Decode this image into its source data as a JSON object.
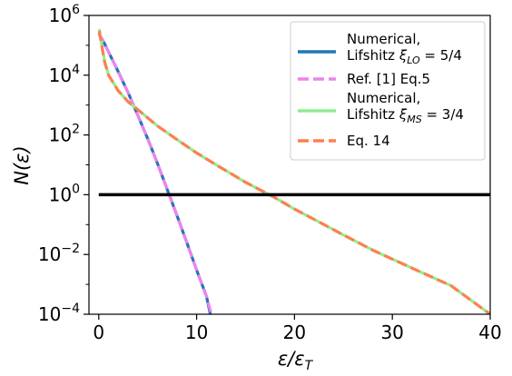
{
  "chart_data": {
    "type": "line",
    "title": "",
    "xlabel": "ε/ε",
    "xlabel_sub": "T",
    "ylabel": "N(ε)",
    "xlim": [
      -1,
      40
    ],
    "ylim": [
      0.0001,
      1000000
    ],
    "yscale": "log",
    "grid": false,
    "legend_position": "top-right",
    "x_ticks": [
      "0",
      "10",
      "20",
      "30",
      "40"
    ],
    "y_ticks": [
      {
        "base": "10",
        "exp": "6"
      },
      {
        "base": "10",
        "exp": "4"
      },
      {
        "base": "10",
        "exp": "2"
      },
      {
        "base": "10",
        "exp": "0"
      },
      {
        "base": "10",
        "exp": "−2"
      },
      {
        "base": "10",
        "exp": "−4"
      }
    ],
    "reference_line": {
      "y": 1,
      "x_range": [
        0,
        40
      ],
      "color": "#000000"
    },
    "series": [
      {
        "legend_line1": "Numerical,",
        "legend_line2_prefix": "Lifshitz ",
        "legend_symbol": "ξ",
        "legend_sub": "LO",
        "legend_suffix": " = 5/4",
        "color": "#1f77b4",
        "style": "solid",
        "x": [
          0,
          0.5,
          1,
          2,
          3,
          4,
          5,
          6,
          7,
          8,
          9,
          10,
          11,
          11.4
        ],
        "y": [
          250000,
          130000,
          60000,
          13000,
          2600,
          450,
          75,
          11,
          1.5,
          0.2,
          0.025,
          0.003,
          0.0004,
          0.0001
        ]
      },
      {
        "legend_line1": "Ref. [1] Eq.5",
        "color": "#ee82ee",
        "style": "dashed",
        "x": [
          0,
          0.5,
          1,
          2,
          3,
          4,
          5,
          6,
          7,
          8,
          9,
          10,
          11,
          11.5
        ],
        "y": [
          250000,
          130000,
          60000,
          13000,
          2600,
          450,
          75,
          11,
          1.5,
          0.2,
          0.025,
          0.003,
          0.0004,
          0.0001
        ]
      },
      {
        "legend_line1": "Numerical,",
        "legend_line2_prefix": "Lifshitz ",
        "legend_symbol": "ξ",
        "legend_sub": "MS",
        "legend_suffix": " = 3/4",
        "color": "#90ee90",
        "style": "solid",
        "x": [
          0.05,
          0.3,
          0.6,
          1,
          2,
          3,
          4,
          6,
          8,
          10,
          12,
          15,
          18,
          20,
          22,
          25,
          28,
          30,
          33,
          36,
          40
        ],
        "y": [
          350000,
          110000,
          30000,
          10000,
          3000,
          1300,
          700,
          200,
          70,
          25,
          10,
          2.6,
          0.8,
          0.33,
          0.15,
          0.045,
          0.014,
          0.007,
          0.0025,
          0.0009,
          0.0001
        ]
      },
      {
        "legend_line1": "Eq. 14",
        "color": "#ff7f50",
        "style": "dashed",
        "x": [
          0.05,
          0.3,
          0.6,
          1,
          2,
          3,
          4,
          6,
          8,
          10,
          12,
          15,
          18,
          20,
          22,
          25,
          28,
          30,
          33,
          36,
          40
        ],
        "y": [
          300000,
          100000,
          28000,
          10000,
          3000,
          1300,
          700,
          200,
          70,
          25,
          10,
          2.6,
          0.8,
          0.33,
          0.15,
          0.045,
          0.014,
          0.007,
          0.0025,
          0.0009,
          0.0001
        ]
      }
    ]
  }
}
